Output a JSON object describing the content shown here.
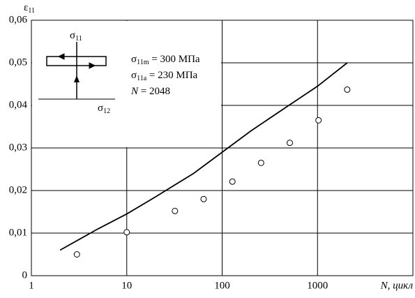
{
  "chart_data": {
    "type": "line",
    "ylabel": {
      "main": "ε",
      "sub": "11"
    },
    "xlabel": "N, цикл",
    "xscale": "log",
    "xlim": [
      1,
      10000
    ],
    "ylim": [
      0,
      0.06
    ],
    "xticks": [
      1,
      10,
      100,
      1000
    ],
    "yticks": [
      {
        "value": 0,
        "label": "0"
      },
      {
        "value": 0.01,
        "label": "0,01"
      },
      {
        "value": 0.02,
        "label": "0,02"
      },
      {
        "value": 0.03,
        "label": "0,03"
      },
      {
        "value": 0.04,
        "label": "0,04"
      },
      {
        "value": 0.05,
        "label": "0,05"
      },
      {
        "value": 0.06,
        "label": "0,06"
      }
    ],
    "grid": true,
    "series": [
      {
        "type": "line",
        "color": "#000000",
        "x": [
          2,
          5,
          10,
          20,
          50,
          100,
          200,
          500,
          1000,
          2048
        ],
        "values": [
          0.006,
          0.011,
          0.0145,
          0.0185,
          0.024,
          0.029,
          0.034,
          0.04,
          0.0445,
          0.05
        ]
      },
      {
        "type": "scatter",
        "color": "#000000",
        "x": [
          3,
          10,
          32,
          64,
          128,
          256,
          512,
          1024,
          2048
        ],
        "values": [
          0.005,
          0.0102,
          0.0152,
          0.018,
          0.0221,
          0.0265,
          0.0312,
          0.0365,
          0.0437
        ]
      }
    ],
    "annotations": [
      {
        "main": "σ",
        "sub": "11m",
        "tail": " = 300 МПа"
      },
      {
        "main": "σ",
        "sub": "11a",
        "tail": " = 230 МПа"
      },
      {
        "main": "N",
        "tail": " = 2048"
      }
    ],
    "inset": {
      "top": {
        "main": "σ",
        "sub": "11"
      },
      "bottom": {
        "main": "σ",
        "sub": "12"
      }
    }
  }
}
